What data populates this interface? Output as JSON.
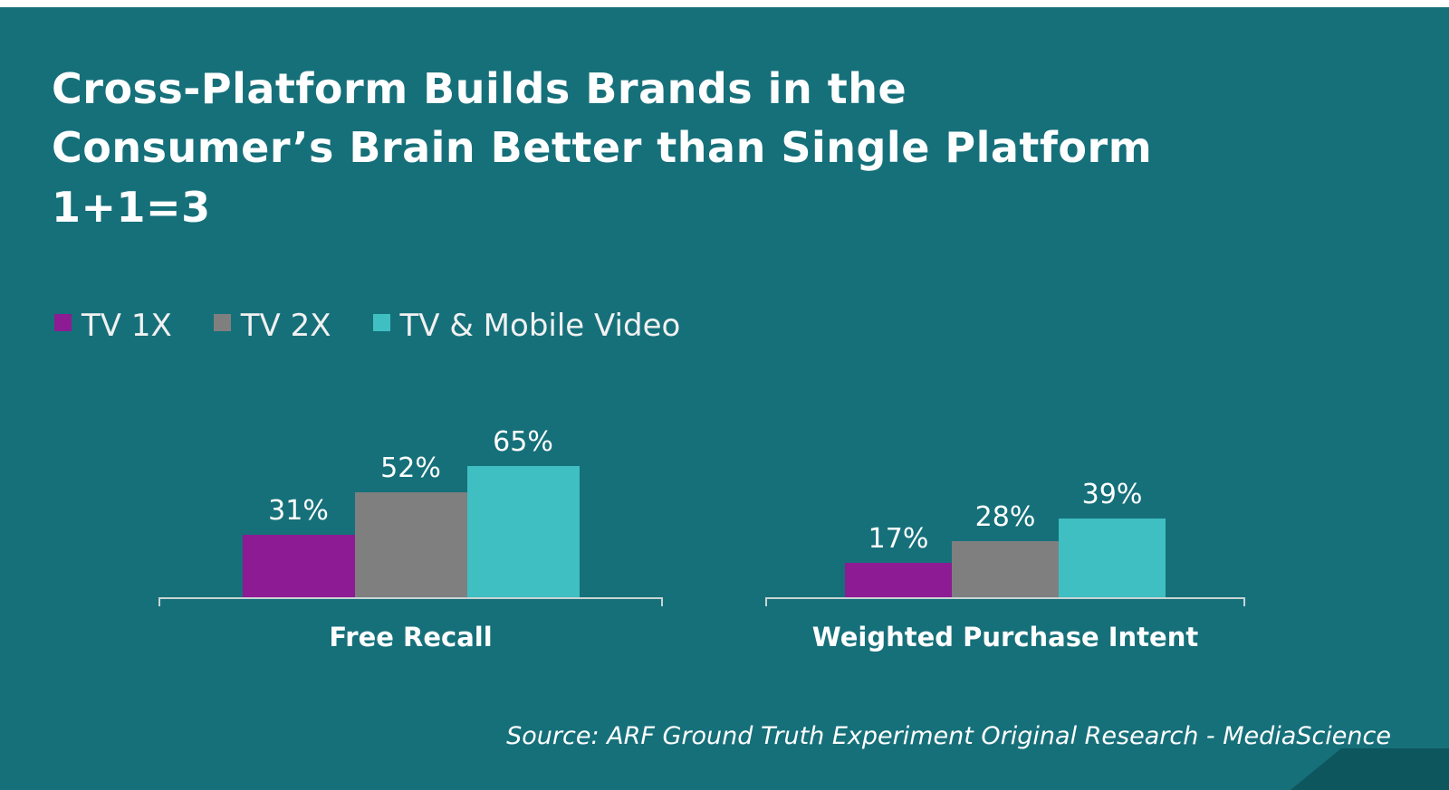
{
  "slide": {
    "title_lines": [
      "Cross-Platform Builds Brands in the",
      "Consumer’s Brain Better than Single Platform",
      "1+1=3"
    ],
    "source": "Source: ARF Ground Truth Experiment Original Research - MediaScience"
  },
  "chart_data": {
    "type": "bar",
    "title": "Cross-Platform Builds Brands in the Consumer’s Brain Better than Single Platform 1+1=3",
    "categories": [
      "Free Recall",
      "Weighted Purchase Intent"
    ],
    "series": [
      {
        "name": "TV 1X",
        "values": [
          31,
          17
        ],
        "color": "#8d1b93"
      },
      {
        "name": "TV 2X",
        "values": [
          52,
          28
        ],
        "color": "#7f7f7f"
      },
      {
        "name": "TV & Mobile Video",
        "values": [
          65,
          39
        ],
        "color": "#3fbfc1"
      }
    ],
    "value_suffix": "%",
    "ylim": [
      0,
      70
    ],
    "grid": false,
    "data_labels": true,
    "legend_position": "top-left",
    "background_color": "#16707a",
    "axis_color": "#c8d4d4"
  }
}
